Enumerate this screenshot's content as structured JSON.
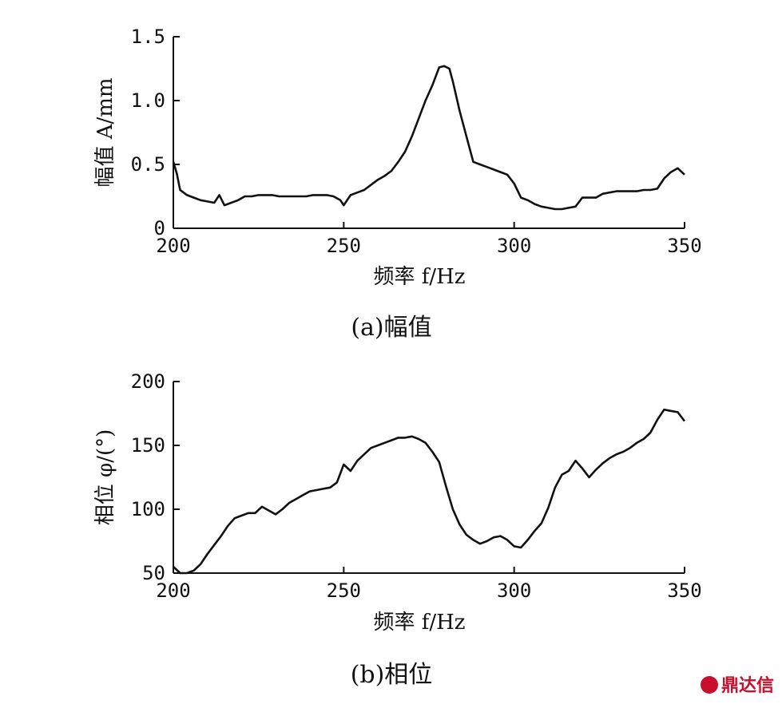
{
  "chart_data": [
    {
      "id": "a",
      "type": "line",
      "caption": "(a)幅值",
      "xlabel": "频率 f/Hz",
      "ylabel": "幅值 A/mm",
      "xlim": [
        200,
        350
      ],
      "ylim": [
        0,
        1.5
      ],
      "xticks": [
        200,
        250,
        300,
        350
      ],
      "xtick_labels": [
        "200",
        "250",
        "300",
        "350"
      ],
      "yticks": [
        0,
        0.5,
        1.0,
        1.5
      ],
      "ytick_labels": [
        "0",
        "0.5",
        "1.0",
        "1.5"
      ],
      "grid": false,
      "series": [
        {
          "x": [
            200,
            201,
            202,
            204,
            206,
            208,
            210,
            212,
            213.5,
            215,
            217,
            219,
            221,
            223,
            225,
            227,
            229,
            231,
            233,
            235,
            237,
            239,
            241,
            243,
            245,
            247,
            249,
            250,
            252,
            254,
            256,
            258,
            260,
            262,
            264,
            266,
            268,
            270,
            272,
            274,
            276,
            278,
            279.5,
            281,
            282,
            284,
            286,
            288,
            290,
            292,
            294,
            296,
            298,
            300,
            302,
            304,
            306,
            308,
            310,
            312,
            314,
            316,
            318,
            320,
            322,
            324,
            326,
            328,
            330,
            332,
            334,
            336,
            338,
            340,
            342,
            344,
            346,
            348,
            350
          ],
          "y": [
            0.52,
            0.43,
            0.3,
            0.26,
            0.24,
            0.22,
            0.21,
            0.2,
            0.26,
            0.18,
            0.2,
            0.22,
            0.25,
            0.25,
            0.26,
            0.26,
            0.26,
            0.25,
            0.25,
            0.25,
            0.25,
            0.25,
            0.26,
            0.26,
            0.26,
            0.25,
            0.22,
            0.18,
            0.26,
            0.28,
            0.3,
            0.34,
            0.38,
            0.41,
            0.45,
            0.52,
            0.6,
            0.72,
            0.86,
            1.0,
            1.12,
            1.26,
            1.27,
            1.25,
            1.15,
            0.92,
            0.72,
            0.52,
            0.5,
            0.48,
            0.46,
            0.44,
            0.42,
            0.35,
            0.24,
            0.22,
            0.19,
            0.17,
            0.16,
            0.15,
            0.15,
            0.16,
            0.17,
            0.24,
            0.24,
            0.24,
            0.27,
            0.28,
            0.29,
            0.29,
            0.29,
            0.29,
            0.3,
            0.3,
            0.31,
            0.39,
            0.44,
            0.47,
            0.42
          ]
        }
      ]
    },
    {
      "id": "b",
      "type": "line",
      "caption": "(b)相位",
      "xlabel": "频率 f/Hz",
      "ylabel": "相位 φ/(°)",
      "xlim": [
        200,
        350
      ],
      "ylim": [
        50,
        200
      ],
      "xticks": [
        200,
        250,
        300,
        350
      ],
      "xtick_labels": [
        "200",
        "250",
        "300",
        "350"
      ],
      "yticks": [
        50,
        100,
        150,
        200
      ],
      "ytick_labels": [
        "50",
        "100",
        "150",
        "200"
      ],
      "grid": false,
      "series": [
        {
          "x": [
            200,
            202,
            204,
            206,
            208,
            210,
            212,
            214,
            216,
            218,
            220,
            222,
            224,
            226,
            228,
            230,
            232,
            234,
            236,
            238,
            240,
            242,
            244,
            246,
            248,
            250,
            252,
            254,
            256,
            258,
            260,
            262,
            264,
            266,
            268,
            270,
            272,
            274,
            276,
            278,
            280,
            282,
            284,
            286,
            288,
            290,
            292,
            294,
            296,
            298,
            300,
            302,
            304,
            306,
            308,
            310,
            312,
            314,
            316,
            318,
            320,
            322,
            324,
            326,
            328,
            330,
            332,
            334,
            336,
            338,
            340,
            342,
            344,
            346,
            348,
            350
          ],
          "y": [
            55,
            50,
            50,
            52,
            57,
            65,
            72,
            79,
            87,
            93,
            95,
            97,
            97,
            102,
            99,
            96,
            100,
            105,
            108,
            111,
            114,
            115,
            116,
            117,
            121,
            135,
            130,
            138,
            143,
            148,
            150,
            152,
            154,
            156,
            156,
            157,
            155,
            152,
            145,
            137,
            118,
            100,
            88,
            80,
            76,
            73,
            75,
            78,
            79,
            76,
            71,
            70,
            76,
            83,
            89,
            101,
            117,
            127,
            130,
            138,
            132,
            125,
            131,
            136,
            140,
            143,
            145,
            148,
            152,
            155,
            160,
            170,
            178,
            177,
            176,
            169
          ]
        }
      ]
    }
  ],
  "watermark": {
    "text": "鼎达信",
    "color": "#c8102e"
  }
}
